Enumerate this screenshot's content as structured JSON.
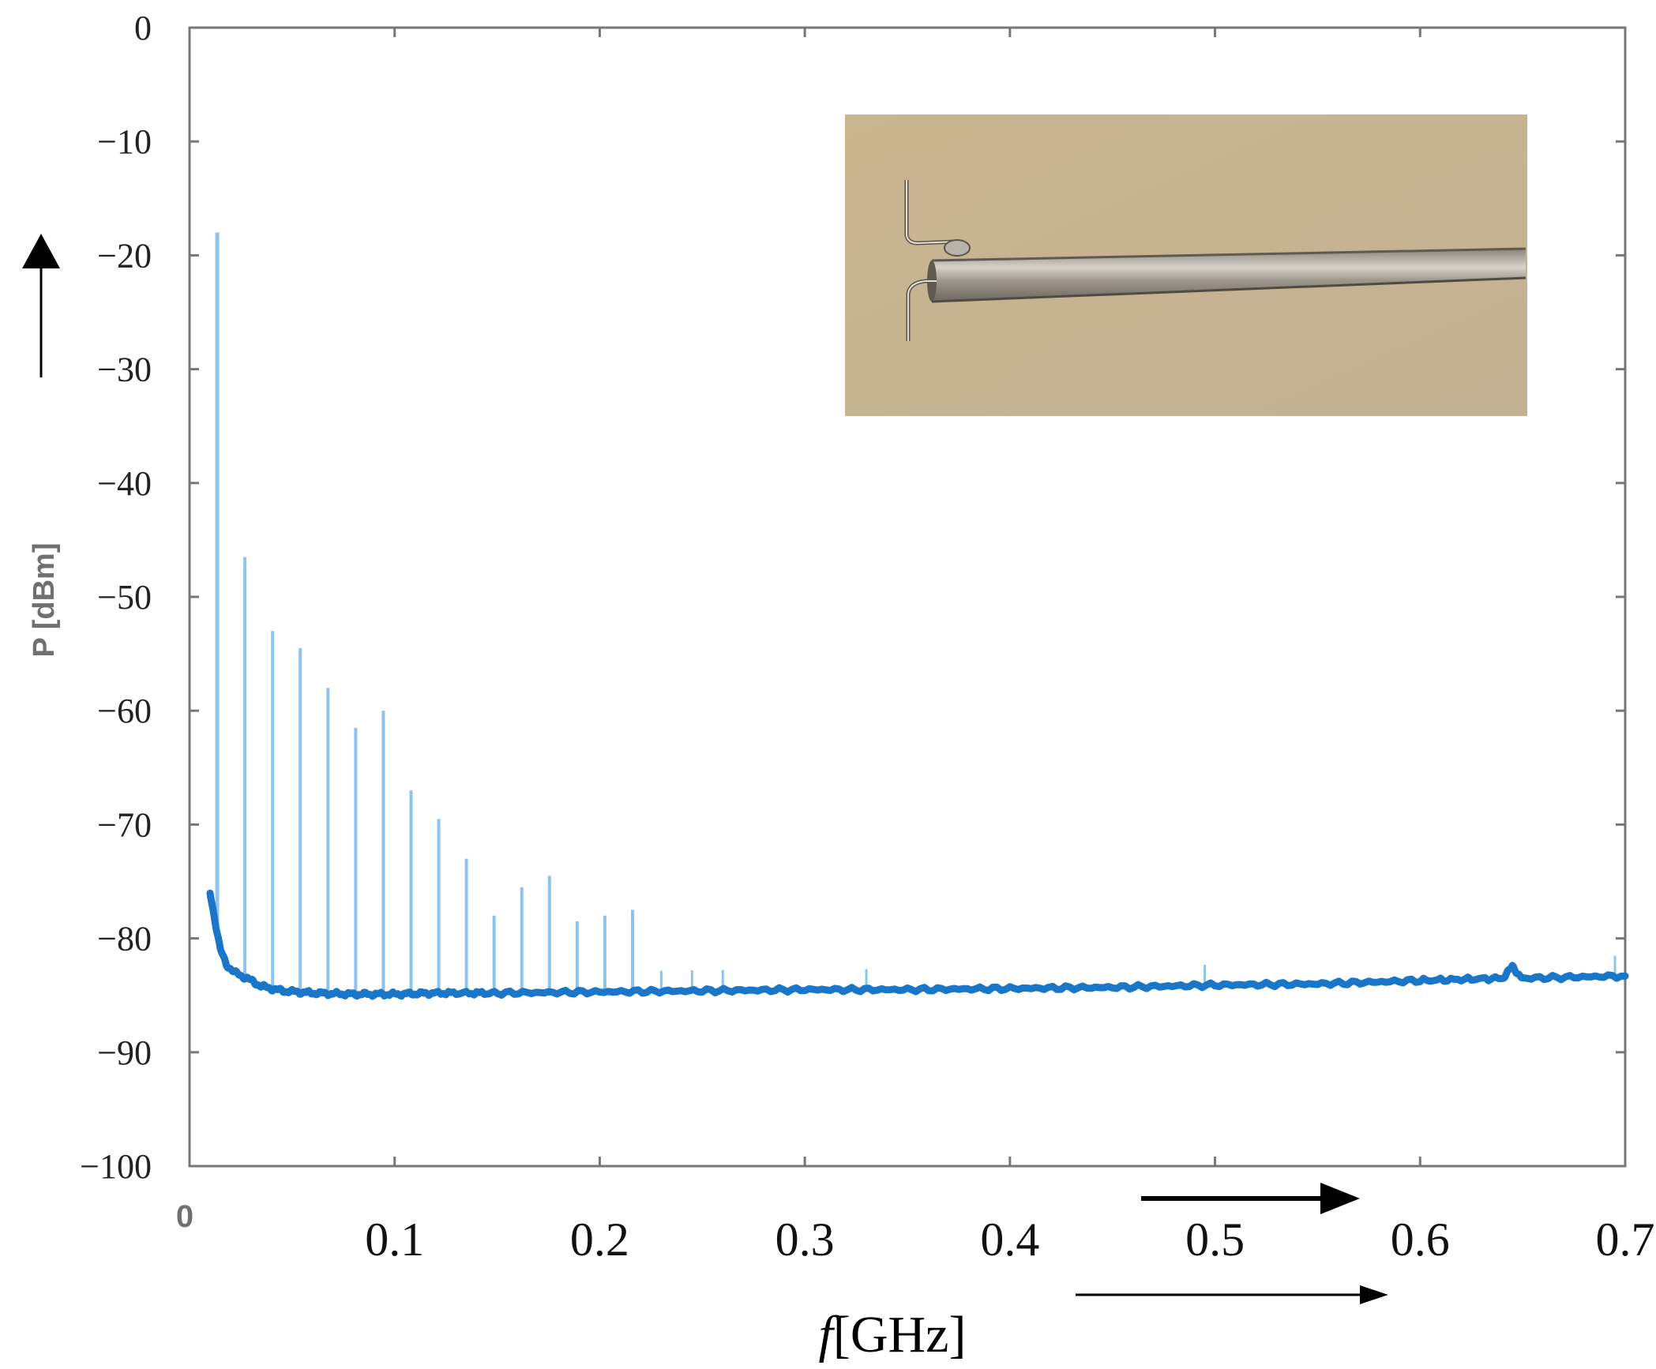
{
  "chart_data": {
    "type": "line",
    "title": "",
    "xlabel": "f[GHz]",
    "xlabel_italic_prefix": "f",
    "xlabel_rest": "[GHz]",
    "ylabel": "P [dBm]",
    "xlim": [
      0,
      0.7
    ],
    "ylim": [
      -100,
      0
    ],
    "x_ticks": [
      0,
      0.1,
      0.2,
      0.3,
      0.4,
      0.5,
      0.6,
      0.7
    ],
    "x_tick_labels": [
      "0",
      "0.1",
      "0.2",
      "0.3",
      "0.4",
      "0.5",
      "0.6",
      "0.7"
    ],
    "y_ticks": [
      0,
      -10,
      -20,
      -30,
      -40,
      -50,
      -60,
      -70,
      -80,
      -90,
      -100
    ],
    "y_tick_labels": [
      "0",
      "−10",
      "−20",
      "−30",
      "−40",
      "−50",
      "−60",
      "−70",
      "−80",
      "−90",
      "−100"
    ],
    "grid": false,
    "legend": "none",
    "colors": {
      "series": "#1976c8",
      "harmonic": "#8ec3ec",
      "axis": "#555555",
      "inset_bg": "#c8b692"
    },
    "series": [
      {
        "x": [
          0.01,
          0.011,
          0.013,
          0.015,
          0.018,
          0.022,
          0.028,
          0.035,
          0.045,
          0.06,
          0.08,
          0.1,
          0.12,
          0.15,
          0.2,
          0.25,
          0.3,
          0.35,
          0.4,
          0.45,
          0.5,
          0.55,
          0.6,
          0.64,
          0.645,
          0.65,
          0.7
        ],
        "y": [
          -76,
          -77,
          -79,
          -81,
          -82.3,
          -83,
          -83.5,
          -84.2,
          -84.6,
          -84.8,
          -84.9,
          -84.9,
          -84.8,
          -84.8,
          -84.7,
          -84.6,
          -84.5,
          -84.5,
          -84.4,
          -84.3,
          -84.1,
          -84,
          -83.7,
          -83.5,
          -82.5,
          -83.5,
          -83.3
        ]
      }
    ],
    "harmonics": {
      "x": [
        0.0135,
        0.027,
        0.0405,
        0.054,
        0.0675,
        0.081,
        0.0945,
        0.108,
        0.1215,
        0.135,
        0.1485,
        0.162,
        0.1755,
        0.189,
        0.2025,
        0.216
      ],
      "y": [
        -18,
        -46.5,
        -53,
        -54.5,
        -58,
        -61.5,
        -60,
        -67,
        -69.5,
        -73,
        -78,
        -75.5,
        -74.5,
        -78.5,
        -78,
        -77.5
      ]
    },
    "inset": {
      "present": true,
      "description": "photo of a rod antenna"
    }
  }
}
